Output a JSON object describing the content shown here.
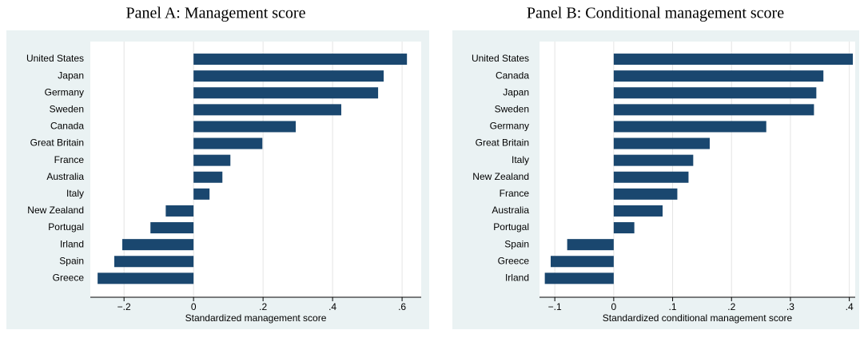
{
  "chart_data": [
    {
      "type": "bar",
      "orientation": "horizontal",
      "title": "Panel A: Management score",
      "x_label": "Standardized management score",
      "categories": [
        "United States",
        "Japan",
        "Germany",
        "Sweden",
        "Canada",
        "Great Britain",
        "France",
        "Australia",
        "Italy",
        "New Zealand",
        "Portugal",
        "Irland",
        "Spain",
        "Greece"
      ],
      "values": [
        0.614,
        0.547,
        0.531,
        0.425,
        0.294,
        0.198,
        0.106,
        0.083,
        0.046,
        -0.08,
        -0.124,
        -0.205,
        -0.228,
        -0.276
      ],
      "color": "#1a476f",
      "xlim": [
        -0.297,
        0.655
      ],
      "xticks": [
        {
          "value": -0.2,
          "label": "−.2"
        },
        0,
        {
          "value": 0.2,
          "label": ".2"
        },
        {
          "value": 0.4,
          "label": ".4"
        },
        {
          "value": 0.6,
          "label": ".6"
        }
      ],
      "grid": true
    },
    {
      "type": "bar",
      "orientation": "horizontal",
      "title": "Panel B: Conditional management score",
      "x_label": "Standardized conditional management score",
      "categories": [
        "United States",
        "Canada",
        "Japan",
        "Sweden",
        "Germany",
        "Great Britain",
        "Italy",
        "New Zealand",
        "France",
        "Australia",
        "Portugal",
        "Spain",
        "Greece",
        "Irland"
      ],
      "values": [
        0.406,
        0.356,
        0.344,
        0.34,
        0.259,
        0.163,
        0.135,
        0.127,
        0.108,
        0.083,
        0.035,
        -0.079,
        -0.107,
        -0.117
      ],
      "color": "#1a476f",
      "xlim": [
        -0.126,
        0.41
      ],
      "xticks": [
        {
          "value": -0.1,
          "label": "−.1"
        },
        0,
        {
          "value": 0.1,
          "label": ".1"
        },
        {
          "value": 0.2,
          "label": ".2"
        },
        {
          "value": 0.3,
          "label": ".3"
        },
        {
          "value": 0.4,
          "label": ".4"
        }
      ],
      "grid": true
    }
  ]
}
